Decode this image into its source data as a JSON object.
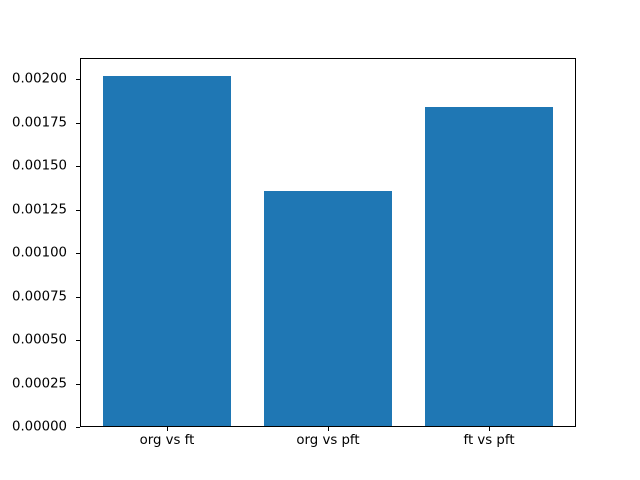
{
  "chart_data": {
    "type": "bar",
    "categories": [
      "org vs ft",
      "org vs pft",
      "ft vs pft"
    ],
    "values": [
      0.00202,
      0.00136,
      0.00184
    ],
    "x_positions": [
      0,
      1,
      2
    ],
    "bar_width": 0.8,
    "xlim": [
      -0.54,
      2.54
    ],
    "ylim": [
      0,
      0.002122
    ],
    "yticks": [
      0.0,
      0.00025,
      0.0005,
      0.00075,
      0.001,
      0.00125,
      0.0015,
      0.00175,
      0.002
    ],
    "ytick_labels": [
      "0.00000",
      "0.00025",
      "0.00050",
      "0.00075",
      "0.00100",
      "0.00125",
      "0.00150",
      "0.00175",
      "0.00200"
    ],
    "bar_color": "#1f77b4",
    "axis_color": "#000000",
    "background_color": "#ffffff",
    "grid": false,
    "legend_position": "none"
  }
}
